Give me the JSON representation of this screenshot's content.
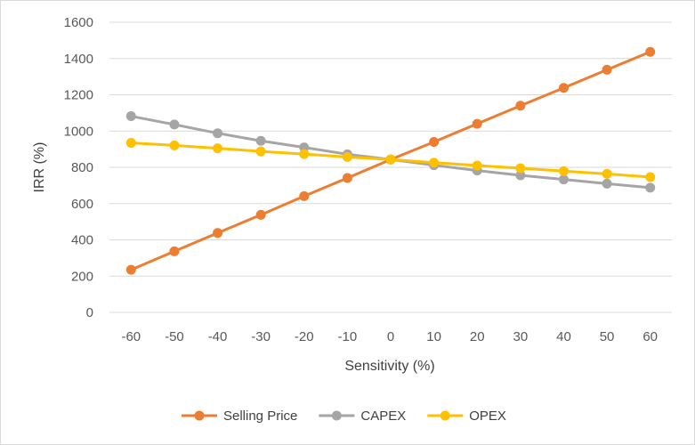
{
  "chart_data": {
    "type": "line",
    "xlabel": "Sensitivity (%)",
    "ylabel": "IRR (%)",
    "x": [
      -60,
      -50,
      -40,
      -30,
      -20,
      -10,
      0,
      10,
      20,
      30,
      40,
      50,
      60
    ],
    "ylim": [
      0,
      1600
    ],
    "yticks": [
      0,
      200,
      400,
      600,
      800,
      1000,
      1200,
      1400,
      1600
    ],
    "grid": true,
    "legend_position": "bottom",
    "series": [
      {
        "name": "Selling Price",
        "color": "#ED7D31",
        "values": [
          235,
          337,
          438,
          538,
          641,
          741,
          843,
          940,
          1040,
          1140,
          1238,
          1338,
          1437
        ]
      },
      {
        "name": "CAPEX",
        "color": "#A5A5A5",
        "values": [
          1082,
          1036,
          988,
          946,
          910,
          872,
          843,
          812,
          782,
          756,
          733,
          710,
          688
        ]
      },
      {
        "name": "OPEX",
        "color": "#FFC000",
        "values": [
          935,
          921,
          905,
          888,
          873,
          857,
          843,
          826,
          810,
          795,
          779,
          764,
          746
        ]
      }
    ]
  }
}
